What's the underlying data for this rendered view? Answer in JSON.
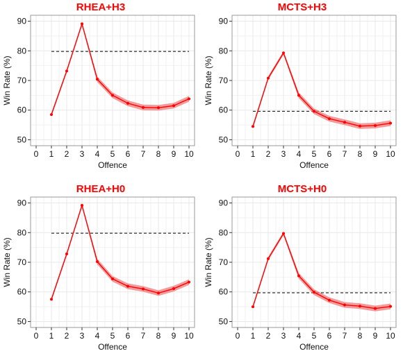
{
  "colors": {
    "series": "#ff0000",
    "ribbon": "#f07a7a",
    "title": "#ff0000",
    "baseline": "#000000",
    "grid": "#e8e8e8",
    "panel_border": "#999999"
  },
  "chart_data": [
    {
      "type": "line",
      "title": "RHEA+H3",
      "xlabel": "Offence",
      "ylabel": "Win Rate (%)",
      "xlim": [
        0,
        10
      ],
      "ylim": [
        48,
        92
      ],
      "xticks": [
        "0",
        "1",
        "2",
        "3",
        "4",
        "5",
        "6",
        "7",
        "8",
        "9",
        "10"
      ],
      "yticks": [
        "50",
        "60",
        "70",
        "80",
        "90"
      ],
      "x": [
        1,
        2,
        3,
        4,
        5,
        6,
        7,
        8,
        9,
        10
      ],
      "series": [
        {
          "values": [
            58.5,
            73.2,
            89.1,
            70.4,
            65.0,
            62.3,
            60.9,
            60.8,
            61.5,
            63.8
          ],
          "ci": 0.6
        }
      ],
      "baseline": 79.8,
      "grid": true
    },
    {
      "type": "line",
      "title": "MCTS+H3",
      "xlabel": "Offence",
      "ylabel": "Win Rate (%)",
      "xlim": [
        0,
        10
      ],
      "ylim": [
        48,
        92
      ],
      "xticks": [
        "0",
        "1",
        "2",
        "3",
        "4",
        "5",
        "6",
        "7",
        "8",
        "9",
        "10"
      ],
      "yticks": [
        "50",
        "60",
        "70",
        "80",
        "90"
      ],
      "x": [
        1,
        2,
        3,
        4,
        5,
        6,
        7,
        8,
        9,
        10
      ],
      "series": [
        {
          "values": [
            54.5,
            70.8,
            79.3,
            65.0,
            59.6,
            57.1,
            55.9,
            54.6,
            54.8,
            55.6
          ],
          "ci": 0.6
        }
      ],
      "baseline": 59.6,
      "grid": true
    },
    {
      "type": "line",
      "title": "RHEA+H0",
      "xlabel": "Offence",
      "ylabel": "Win Rate (%)",
      "xlim": [
        0,
        10
      ],
      "ylim": [
        48,
        92
      ],
      "xticks": [
        "0",
        "1",
        "2",
        "3",
        "4",
        "5",
        "6",
        "7",
        "8",
        "9",
        "10"
      ],
      "yticks": [
        "50",
        "60",
        "70",
        "80",
        "90"
      ],
      "x": [
        1,
        2,
        3,
        4,
        5,
        6,
        7,
        8,
        9,
        10
      ],
      "series": [
        {
          "values": [
            57.5,
            72.8,
            89.2,
            70.2,
            64.4,
            61.9,
            61.0,
            59.6,
            61.1,
            63.3
          ],
          "ci": 0.6
        }
      ],
      "baseline": 79.8,
      "grid": true
    },
    {
      "type": "line",
      "title": "MCTS+H0",
      "xlabel": "Offence",
      "ylabel": "Win Rate (%)",
      "xlim": [
        0,
        10
      ],
      "ylim": [
        48,
        92
      ],
      "xticks": [
        "0",
        "1",
        "2",
        "3",
        "4",
        "5",
        "6",
        "7",
        "8",
        "9",
        "10"
      ],
      "yticks": [
        "50",
        "60",
        "70",
        "80",
        "90"
      ],
      "x": [
        1,
        2,
        3,
        4,
        5,
        6,
        7,
        8,
        9,
        10
      ],
      "series": [
        {
          "values": [
            55.0,
            71.2,
            79.7,
            65.4,
            59.9,
            57.2,
            55.6,
            55.2,
            54.4,
            55.1
          ],
          "ci": 0.6
        }
      ],
      "baseline": 59.7,
      "grid": true
    }
  ]
}
